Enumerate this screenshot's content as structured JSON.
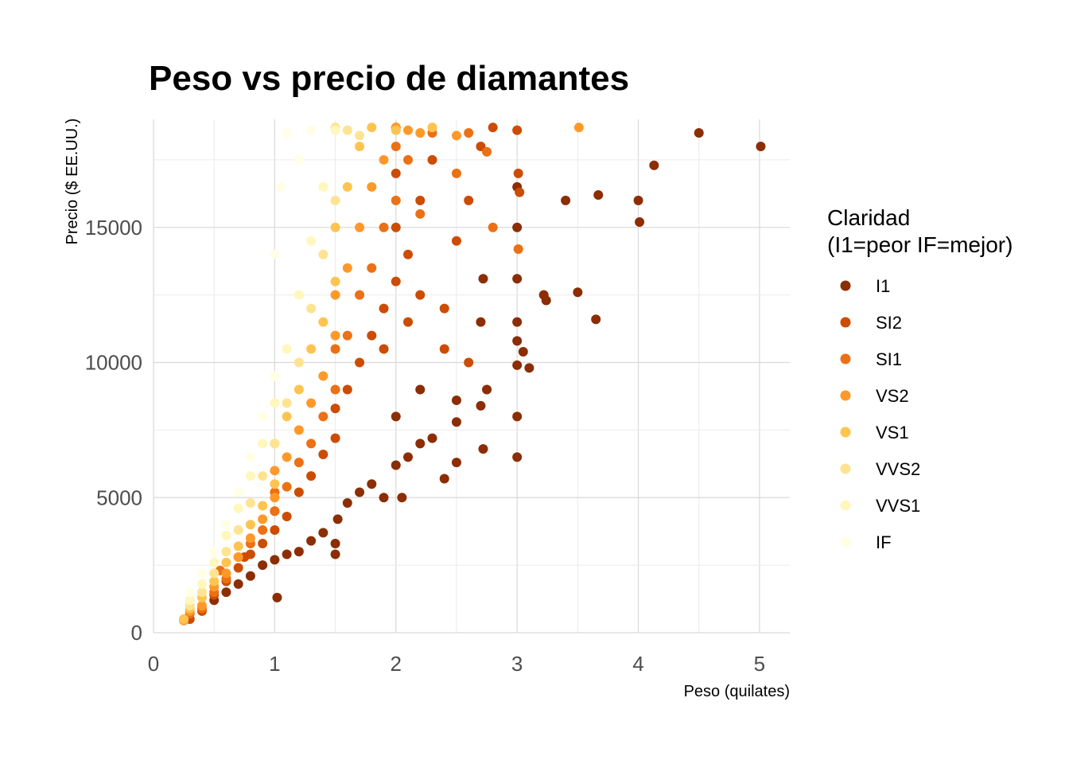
{
  "chart_data": {
    "type": "scatter",
    "title": "Peso vs precio de diamantes",
    "xlabel": "Peso (quilates)",
    "ylabel": "Precio ($ EE.UU.)",
    "xlim": [
      0,
      5.25
    ],
    "ylim": [
      0,
      19000
    ],
    "x_ticks": [
      0,
      1,
      2,
      3,
      4,
      5
    ],
    "y_ticks": [
      0,
      5000,
      10000,
      15000
    ],
    "grid": true,
    "legend": {
      "title_line1": "Claridad",
      "title_line2": "(I1=peor IF=mejor)",
      "placement": "right"
    },
    "series": [
      {
        "name": "I1",
        "color": "#8c2d04",
        "points": [
          [
            0.5,
            1200
          ],
          [
            0.6,
            1500
          ],
          [
            0.7,
            1800
          ],
          [
            0.8,
            2100
          ],
          [
            0.9,
            2500
          ],
          [
            1.0,
            2700
          ],
          [
            1.02,
            1300
          ],
          [
            1.1,
            2900
          ],
          [
            1.2,
            3000
          ],
          [
            1.3,
            3400
          ],
          [
            1.4,
            3700
          ],
          [
            1.5,
            3300
          ],
          [
            1.5,
            2900
          ],
          [
            1.52,
            4200
          ],
          [
            1.6,
            4800
          ],
          [
            1.7,
            5200
          ],
          [
            1.8,
            5500
          ],
          [
            1.9,
            5000
          ],
          [
            2.0,
            6200
          ],
          [
            2.05,
            5000
          ],
          [
            2.1,
            6500
          ],
          [
            2.2,
            7000
          ],
          [
            2.3,
            7200
          ],
          [
            2.4,
            5700
          ],
          [
            2.0,
            8000
          ],
          [
            2.2,
            9000
          ],
          [
            2.5,
            6300
          ],
          [
            2.5,
            7800
          ],
          [
            2.5,
            8600
          ],
          [
            2.7,
            8400
          ],
          [
            2.72,
            6800
          ],
          [
            2.75,
            9000
          ],
          [
            2.7,
            11500
          ],
          [
            3.0,
            6500
          ],
          [
            3.0,
            8000
          ],
          [
            3.0,
            9900
          ],
          [
            3.0,
            10800
          ],
          [
            3.0,
            11500
          ],
          [
            3.0,
            13100
          ],
          [
            3.0,
            15000
          ],
          [
            3.0,
            16500
          ],
          [
            3.05,
            10400
          ],
          [
            3.1,
            9800
          ],
          [
            2.72,
            13100
          ],
          [
            3.22,
            12500
          ],
          [
            3.24,
            12300
          ],
          [
            3.4,
            16000
          ],
          [
            3.5,
            12600
          ],
          [
            3.65,
            11600
          ],
          [
            3.67,
            16200
          ],
          [
            4.0,
            16000
          ],
          [
            4.01,
            15200
          ],
          [
            4.13,
            17300
          ],
          [
            4.5,
            18500
          ],
          [
            5.01,
            18000
          ]
        ]
      },
      {
        "name": "SI2",
        "color": "#cc4c02",
        "points": [
          [
            0.3,
            500
          ],
          [
            0.4,
            800
          ],
          [
            0.5,
            1400
          ],
          [
            0.6,
            1900
          ],
          [
            0.7,
            2400
          ],
          [
            0.75,
            2800
          ],
          [
            0.8,
            2900
          ],
          [
            0.9,
            3300
          ],
          [
            1.0,
            3800
          ],
          [
            1.0,
            4500
          ],
          [
            1.1,
            4300
          ],
          [
            1.2,
            5200
          ],
          [
            1.3,
            5800
          ],
          [
            1.4,
            6600
          ],
          [
            1.5,
            7200
          ],
          [
            1.5,
            8300
          ],
          [
            1.6,
            9000
          ],
          [
            1.7,
            10000
          ],
          [
            1.8,
            11000
          ],
          [
            1.9,
            12000
          ],
          [
            2.0,
            13000
          ],
          [
            2.0,
            15000
          ],
          [
            2.0,
            17000
          ],
          [
            2.0,
            18700
          ],
          [
            2.1,
            14000
          ],
          [
            2.2,
            16000
          ],
          [
            2.3,
            17500
          ],
          [
            2.4,
            12000
          ],
          [
            2.5,
            14500
          ],
          [
            2.6,
            16000
          ],
          [
            2.7,
            18000
          ],
          [
            2.8,
            18700
          ],
          [
            3.0,
            18600
          ],
          [
            3.01,
            17000
          ],
          [
            3.02,
            16300
          ],
          [
            2.2,
            12500
          ],
          [
            2.4,
            10500
          ],
          [
            2.6,
            10000
          ],
          [
            1.9,
            10500
          ],
          [
            2.1,
            11500
          ]
        ]
      },
      {
        "name": "SI1",
        "color": "#ec7014",
        "points": [
          [
            0.25,
            500
          ],
          [
            0.3,
            700
          ],
          [
            0.4,
            900
          ],
          [
            0.5,
            1500
          ],
          [
            0.55,
            2300
          ],
          [
            0.6,
            2000
          ],
          [
            0.7,
            2800
          ],
          [
            0.8,
            3300
          ],
          [
            0.9,
            3800
          ],
          [
            1.0,
            4500
          ],
          [
            1.0,
            5200
          ],
          [
            1.1,
            5400
          ],
          [
            1.2,
            6300
          ],
          [
            1.3,
            7000
          ],
          [
            1.4,
            8000
          ],
          [
            1.5,
            9000
          ],
          [
            1.5,
            10500
          ],
          [
            1.6,
            11000
          ],
          [
            1.7,
            12500
          ],
          [
            1.8,
            13500
          ],
          [
            1.9,
            15000
          ],
          [
            2.0,
            16000
          ],
          [
            2.0,
            18000
          ],
          [
            2.1,
            17500
          ],
          [
            2.2,
            15500
          ],
          [
            2.3,
            18500
          ],
          [
            2.5,
            17000
          ],
          [
            2.6,
            18500
          ],
          [
            2.75,
            17800
          ],
          [
            2.8,
            15000
          ],
          [
            3.01,
            14200
          ]
        ]
      },
      {
        "name": "VS2",
        "color": "#fe9929",
        "points": [
          [
            0.25,
            450
          ],
          [
            0.3,
            800
          ],
          [
            0.4,
            1000
          ],
          [
            0.5,
            1700
          ],
          [
            0.6,
            2200
          ],
          [
            0.7,
            2800
          ],
          [
            0.8,
            3500
          ],
          [
            0.9,
            4200
          ],
          [
            1.0,
            5000
          ],
          [
            1.0,
            6000
          ],
          [
            1.1,
            6500
          ],
          [
            1.2,
            7500
          ],
          [
            1.3,
            8500
          ],
          [
            1.4,
            9500
          ],
          [
            1.5,
            11000
          ],
          [
            1.5,
            12500
          ],
          [
            1.6,
            13500
          ],
          [
            1.7,
            15000
          ],
          [
            1.8,
            16500
          ],
          [
            1.9,
            17500
          ],
          [
            2.0,
            18700
          ],
          [
            2.1,
            18600
          ],
          [
            2.2,
            18500
          ],
          [
            2.3,
            18700
          ],
          [
            2.5,
            18400
          ],
          [
            3.51,
            18700
          ]
        ]
      },
      {
        "name": "VS1",
        "color": "#fec44f",
        "points": [
          [
            0.25,
            500
          ],
          [
            0.3,
            900
          ],
          [
            0.4,
            1300
          ],
          [
            0.5,
            1900
          ],
          [
            0.6,
            2600
          ],
          [
            0.7,
            3200
          ],
          [
            0.8,
            4000
          ],
          [
            0.9,
            4700
          ],
          [
            1.0,
            5500
          ],
          [
            1.0,
            7000
          ],
          [
            1.1,
            8000
          ],
          [
            1.2,
            9000
          ],
          [
            1.3,
            10500
          ],
          [
            1.4,
            11500
          ],
          [
            1.5,
            13000
          ],
          [
            1.5,
            15000
          ],
          [
            1.6,
            16500
          ],
          [
            1.7,
            18000
          ],
          [
            1.8,
            18700
          ],
          [
            2.0,
            18600
          ],
          [
            2.3,
            18700
          ]
        ]
      },
      {
        "name": "VVS2",
        "color": "#fee391",
        "points": [
          [
            0.3,
            1000
          ],
          [
            0.4,
            1500
          ],
          [
            0.5,
            2200
          ],
          [
            0.6,
            3000
          ],
          [
            0.7,
            3800
          ],
          [
            0.8,
            4800
          ],
          [
            0.9,
            5800
          ],
          [
            1.0,
            7000
          ],
          [
            1.1,
            8500
          ],
          [
            1.2,
            10000
          ],
          [
            1.3,
            12000
          ],
          [
            1.4,
            14000
          ],
          [
            1.5,
            16000
          ],
          [
            1.5,
            18700
          ],
          [
            1.6,
            18600
          ],
          [
            1.7,
            18400
          ]
        ]
      },
      {
        "name": "VVS1",
        "color": "#fff7bc",
        "points": [
          [
            0.3,
            1200
          ],
          [
            0.4,
            1800
          ],
          [
            0.5,
            2600
          ],
          [
            0.6,
            3600
          ],
          [
            0.7,
            4600
          ],
          [
            0.8,
            5800
          ],
          [
            0.9,
            7000
          ],
          [
            1.0,
            8500
          ],
          [
            1.1,
            10500
          ],
          [
            1.2,
            12500
          ],
          [
            1.3,
            14500
          ],
          [
            1.4,
            16500
          ],
          [
            1.5,
            18600
          ]
        ]
      },
      {
        "name": "IF",
        "color": "#ffffe5",
        "points": [
          [
            0.3,
            1500
          ],
          [
            0.4,
            2200
          ],
          [
            0.5,
            3000
          ],
          [
            0.6,
            4000
          ],
          [
            0.7,
            5200
          ],
          [
            0.8,
            6500
          ],
          [
            0.9,
            8000
          ],
          [
            1.0,
            9500
          ],
          [
            1.0,
            14000
          ],
          [
            1.05,
            16500
          ],
          [
            1.1,
            18500
          ],
          [
            1.2,
            17500
          ],
          [
            1.3,
            18600
          ]
        ]
      }
    ]
  }
}
